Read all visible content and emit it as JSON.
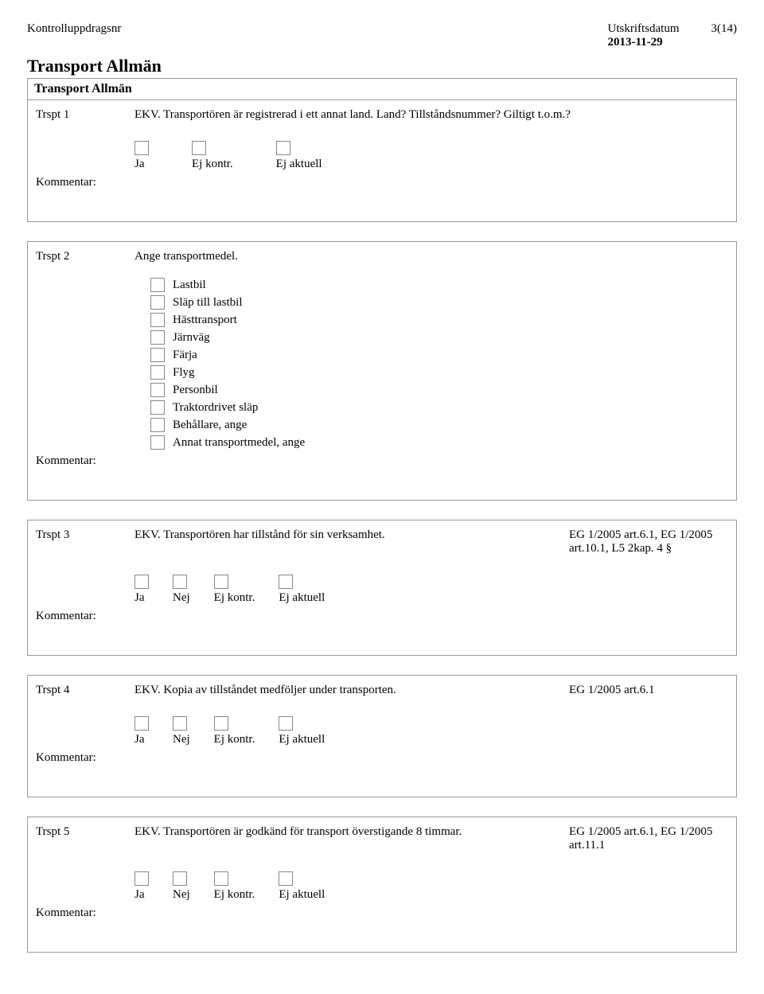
{
  "header": {
    "left_label": "Kontrolluppdragsnr",
    "date_label": "Utskriftsdatum",
    "date_value": "2013-11-29",
    "page_info": "3(14)"
  },
  "title": "Transport Allmän",
  "subtitle": "Transport Allmän",
  "kommentar_label": "Kommentar:",
  "opt_ja": "Ja",
  "opt_nej": "Nej",
  "opt_ejkontr": "Ej kontr.",
  "opt_ejaktuell": "Ej aktuell",
  "q1": {
    "id": "Trspt 1",
    "text": "EKV. Transportören är registrerad i ett annat land. Land? Tillståndsnummer? Giltigt t.o.m.?"
  },
  "q2": {
    "id": "Trspt 2",
    "text": "Ange transportmedel.",
    "options": [
      "Lastbil",
      "Släp till lastbil",
      "Hästtransport",
      "Järnväg",
      "Färja",
      "Flyg",
      "Personbil",
      "Traktordrivet släp",
      "Behållare, ange",
      "Annat transportmedel, ange"
    ]
  },
  "q3": {
    "id": "Trspt 3",
    "text": "EKV. Transportören har tillstånd för sin verksamhet.",
    "ref": "EG 1/2005 art.6.1, EG 1/2005 art.10.1, L5  2kap. 4 §"
  },
  "q4": {
    "id": "Trspt 4",
    "text": "EKV. Kopia av tillståndet medföljer under transporten.",
    "ref": "EG 1/2005 art.6.1"
  },
  "q5": {
    "id": "Trspt 5",
    "text": "EKV. Transportören är godkänd för transport överstigande 8 timmar.",
    "ref": "EG 1/2005 art.6.1, EG 1/2005 art.11.1"
  }
}
